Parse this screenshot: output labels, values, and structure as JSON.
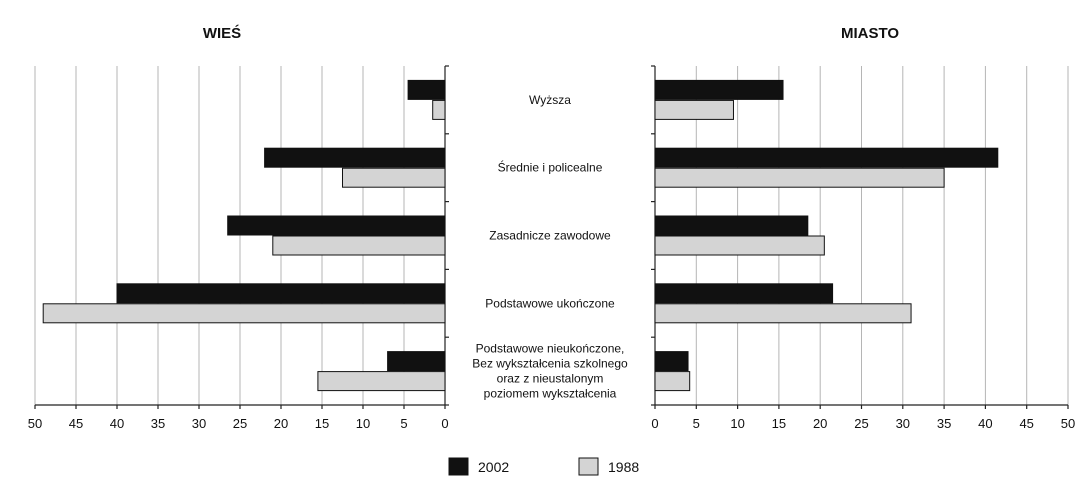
{
  "chart_data": {
    "type": "bar",
    "orientation": "horizontal",
    "categories": [
      [
        "Wyższa"
      ],
      [
        "Średnie i policealne"
      ],
      [
        "Zasadnicze zawodowe"
      ],
      [
        "Podstawowe ukończone"
      ],
      [
        "Podstawowe nieukończone,",
        "Bez wykształcenia szkolnego",
        "oraz z nieustalonym",
        "poziomem wykształcenia"
      ]
    ],
    "xlim": [
      0,
      50
    ],
    "xticks": [
      0,
      5,
      10,
      15,
      20,
      25,
      30,
      35,
      40,
      45,
      50
    ],
    "grid": true,
    "legend_position": "bottom-center",
    "colors": {
      "2002": "#111111",
      "1988": "#d4d4d4"
    },
    "panels": [
      {
        "title": "WIEŚ",
        "direction": "reversed",
        "series": [
          {
            "name": "2002",
            "values": [
              4.5,
              22,
              26.5,
              40,
              7
            ]
          },
          {
            "name": "1988",
            "values": [
              1.5,
              12.5,
              21,
              49,
              15.5
            ]
          }
        ]
      },
      {
        "title": "MIASTO",
        "direction": "normal",
        "series": [
          {
            "name": "2002",
            "values": [
              15.5,
              41.5,
              18.5,
              21.5,
              4
            ]
          },
          {
            "name": "1988",
            "values": [
              9.5,
              35,
              20.5,
              31,
              4.2
            ]
          }
        ]
      }
    ],
    "legend": [
      "2002",
      "1988"
    ]
  }
}
